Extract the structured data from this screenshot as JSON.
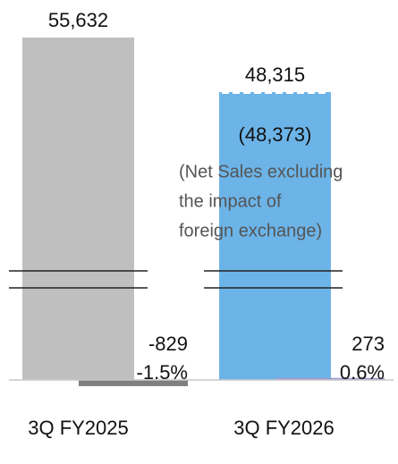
{
  "chart_data": {
    "type": "bar",
    "categories": [
      "3Q FY2025",
      "3Q FY2026"
    ],
    "values": [
      55632,
      48315
    ],
    "value_labels": [
      "55,632",
      "48,315"
    ],
    "colors": [
      "#bfbfbf",
      "#6cb4e8"
    ],
    "changes": {
      "values": [
        -829,
        273
      ],
      "value_labels": [
        "-829",
        "273"
      ],
      "percent_values": [
        -1.5,
        0.6
      ],
      "percent_labels": [
        "-1.5%",
        "0.6%"
      ],
      "colors": [
        "#7f7f7f",
        "#9a9ad0"
      ]
    },
    "annotation": {
      "value": 48373,
      "label": "(48,373)",
      "note_lines": [
        "(Net Sales excluding",
        "the impact of",
        "foreign exchange)"
      ]
    }
  }
}
